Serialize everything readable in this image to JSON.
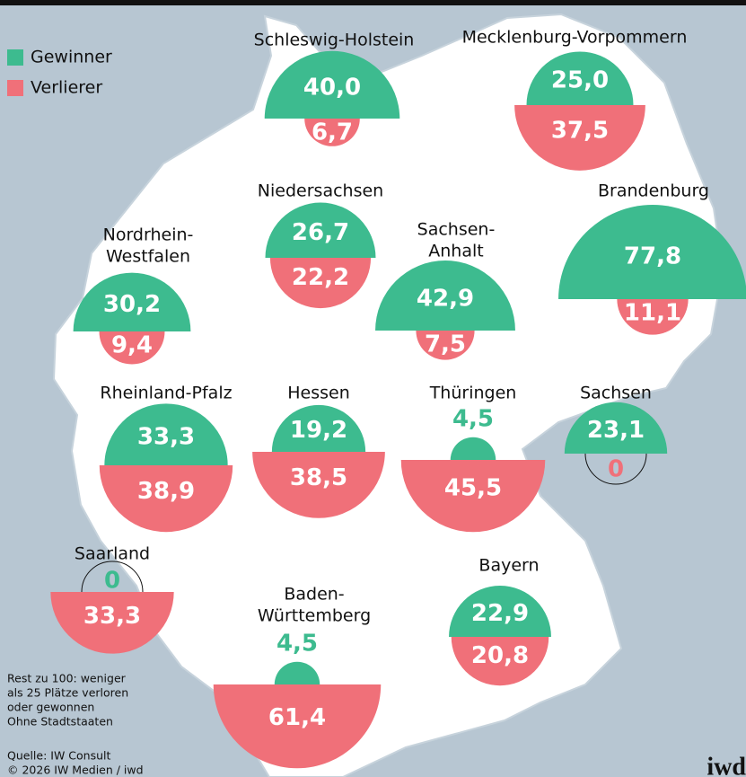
{
  "chart_data": {
    "type": "semicircle-map",
    "categories": [
      [
        "Schleswig-Holstein"
      ],
      [
        "Mecklenburg-Vorpommern"
      ],
      [
        "Niedersachsen"
      ],
      [
        "Brandenburg"
      ],
      [
        "Nordrhein-",
        "Westfalen"
      ],
      [
        "Sachsen-",
        "Anhalt"
      ],
      [
        "Rheinland-Pfalz"
      ],
      [
        "Hessen"
      ],
      [
        "Thüringen"
      ],
      [
        "Sachsen"
      ],
      [
        "Saarland"
      ],
      [
        "Baden-",
        "Württemberg"
      ],
      [
        "Bayern"
      ]
    ],
    "series": [
      {
        "name": "Gewinner",
        "color": "#3dbb8f",
        "values": [
          40.0,
          25.0,
          26.7,
          77.8,
          30.2,
          42.9,
          33.3,
          19.2,
          4.5,
          23.1,
          0,
          4.5,
          22.9
        ],
        "value_labels": [
          "40,0",
          "25,0",
          "26,7",
          "77,8",
          "30,2",
          "42,9",
          "33,3",
          "19,2",
          "4,5",
          "23,1",
          "0",
          "4,5",
          "22,9"
        ]
      },
      {
        "name": "Verlierer",
        "color": "#f07079",
        "values": [
          6.7,
          37.5,
          22.2,
          11.1,
          9.4,
          7.5,
          38.9,
          38.5,
          45.5,
          0,
          33.3,
          61.4,
          20.8
        ],
        "value_labels": [
          "6,7",
          "37,5",
          "22,2",
          "11,1",
          "9,4",
          "7,5",
          "38,9",
          "38,5",
          "45,5",
          "0",
          "33,3",
          "61,4",
          "20,8"
        ]
      }
    ],
    "notes": [
      "Rest zu 100: weniger",
      "als 25 Plätze verloren",
      "oder gewonnen",
      "Ohne Stadtstaaten"
    ],
    "source": [
      "Quelle: IW Consult",
      "© 2026 IW Medien / iwd"
    ],
    "logo": "iwd"
  }
}
